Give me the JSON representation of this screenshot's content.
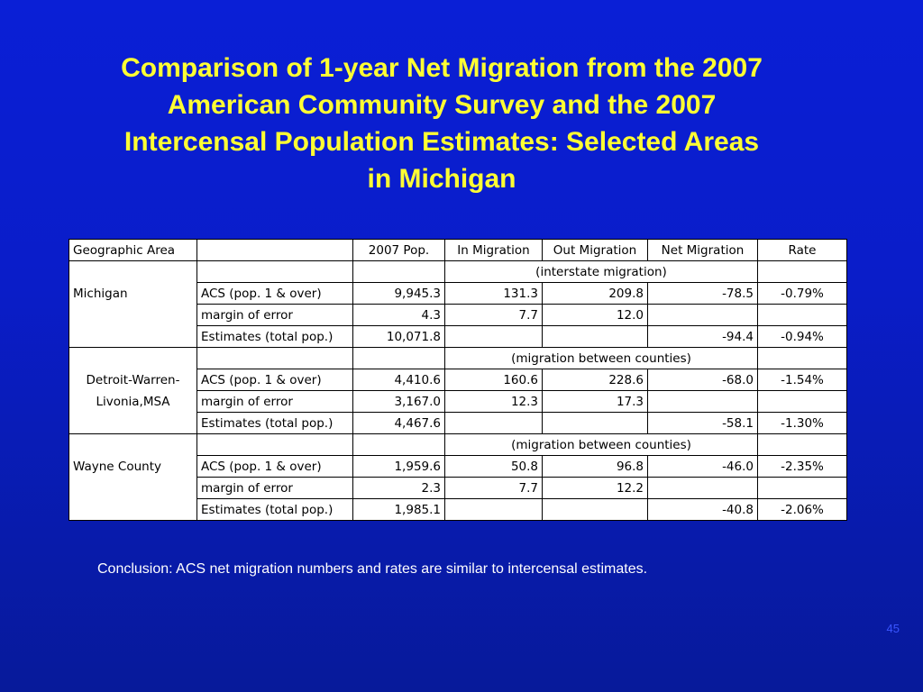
{
  "title_lines": [
    "Comparison of 1-year Net Migration from the 2007",
    "American Community Survey and the 2007",
    "Intercensal Population Estimates: Selected Areas",
    "in Michigan"
  ],
  "table": {
    "headers": [
      "Geographic Area",
      "",
      "2007 Pop.",
      "In Migration",
      "Out Migration",
      "Net Migration",
      "Rate"
    ],
    "groups": [
      {
        "area_lines": [
          "Michigan"
        ],
        "note": "(interstate migration)",
        "rows": [
          [
            "ACS (pop. 1 & over)",
            "9,945.3",
            "131.3",
            "209.8",
            "-78.5",
            "-0.79%"
          ],
          [
            "margin of error",
            "4.3",
            "7.7",
            "12.0",
            "",
            ""
          ],
          [
            "Estimates (total pop.)",
            "10,071.8",
            "",
            "",
            "-94.4",
            "-0.94%"
          ]
        ]
      },
      {
        "area_lines": [
          "Detroit-Warren-",
          "Livonia,MSA"
        ],
        "note": "(migration between counties)",
        "rows": [
          [
            "ACS (pop. 1 & over)",
            "4,410.6",
            "160.6",
            "228.6",
            "-68.0",
            "-1.54%"
          ],
          [
            "margin of error",
            "3,167.0",
            "12.3",
            "17.3",
            "",
            ""
          ],
          [
            "Estimates (total pop.)",
            "4,467.6",
            "",
            "",
            "-58.1",
            "-1.30%"
          ]
        ]
      },
      {
        "area_lines": [
          "Wayne County"
        ],
        "note": "(migration between counties)",
        "rows": [
          [
            "ACS (pop. 1 & over)",
            "1,959.6",
            "50.8",
            "96.8",
            "-46.0",
            "-2.35%"
          ],
          [
            "margin of error",
            "2.3",
            "7.7",
            "12.2",
            "",
            ""
          ],
          [
            "Estimates (total pop.)",
            "1,985.1",
            "",
            "",
            "-40.8",
            "-2.06%"
          ]
        ]
      }
    ]
  },
  "conclusion": "Conclusion:  ACS net migration numbers and rates are similar to intercensal estimates.",
  "page_number": "45",
  "colors": {
    "background": "#0a1fd6",
    "title": "#ffff33",
    "text": "#ffffff",
    "page_number": "#3a55ff"
  }
}
